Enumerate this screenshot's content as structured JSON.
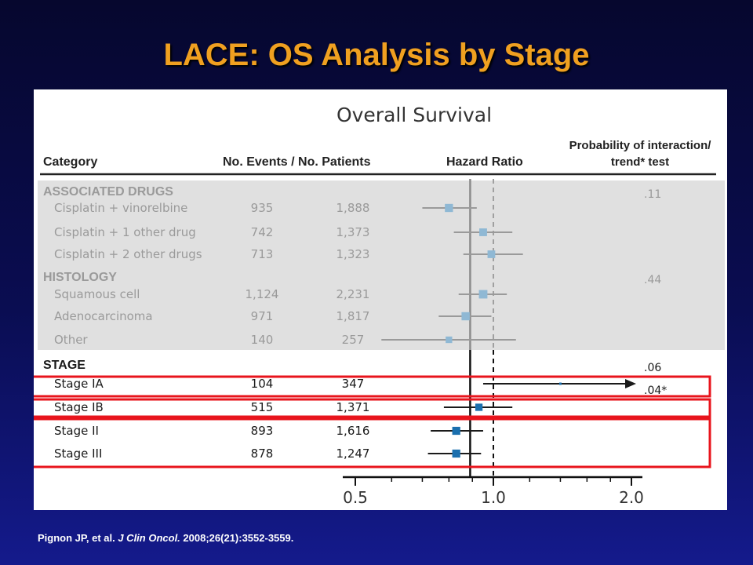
{
  "slide": {
    "title": "LACE: OS Analysis by Stage",
    "citation": {
      "authors": "Pignon JP, et al. ",
      "journal": "J Clin Oncol.",
      "details": " 2008;26(21):3552-3559."
    }
  },
  "chart_data": {
    "type": "forest",
    "title": "Overall Survival",
    "columns": {
      "category": "Category",
      "events_patients": "No. Events / No. Patients",
      "hazard_ratio": "Hazard Ratio",
      "interaction_line1": "Probability of interaction/",
      "interaction_line2": "trend* test"
    },
    "x_axis": {
      "ticks": [
        "0.5",
        "1.0",
        "2.0"
      ],
      "tick_values": [
        0.5,
        1.0,
        2.0
      ],
      "scale": "log"
    },
    "overall_hr": 0.89,
    "groups": [
      {
        "name": "ASSOCIATED DRUGS",
        "p_value": ".11",
        "greyed": true,
        "rows": [
          {
            "label": "Cisplatin + vinorelbine",
            "events": "935",
            "patients": "1,888",
            "hr": 0.8,
            "ci": [
              0.7,
              0.92
            ]
          },
          {
            "label": "Cisplatin + 1 other drug",
            "events": "742",
            "patients": "1,373",
            "hr": 0.95,
            "ci": [
              0.82,
              1.1
            ]
          },
          {
            "label": "Cisplatin + 2 other drugs",
            "events": "713",
            "patients": "1,323",
            "hr": 0.99,
            "ci": [
              0.86,
              1.16
            ]
          }
        ]
      },
      {
        "name": "HISTOLOGY",
        "p_value": ".44",
        "greyed": true,
        "rows": [
          {
            "label": "Squamous cell",
            "events": "1,124",
            "patients": "2,231",
            "hr": 0.95,
            "ci": [
              0.84,
              1.07
            ]
          },
          {
            "label": "Adenocarcinoma",
            "events": "971",
            "patients": "1,817",
            "hr": 0.87,
            "ci": [
              0.76,
              0.99
            ]
          },
          {
            "label": "Other",
            "events": "140",
            "patients": "257",
            "hr": 0.8,
            "ci": [
              0.57,
              1.12
            ]
          }
        ]
      },
      {
        "name": "STAGE",
        "p_value": ".06",
        "trend_p_value": ".04*",
        "greyed": false,
        "rows": [
          {
            "label": "Stage IA",
            "events": "104",
            "patients": "347",
            "hr": 1.4,
            "ci": [
              0.95,
              2.0
            ],
            "arrow": true
          },
          {
            "label": "Stage IB",
            "events": "515",
            "patients": "1,371",
            "hr": 0.93,
            "ci": [
              0.78,
              1.1
            ]
          },
          {
            "label": "Stage II",
            "events": "893",
            "patients": "1,616",
            "hr": 0.83,
            "ci": [
              0.73,
              0.95
            ]
          },
          {
            "label": "Stage III",
            "events": "878",
            "patients": "1,247",
            "hr": 0.83,
            "ci": [
              0.72,
              0.94
            ]
          }
        ]
      }
    ],
    "highlight_color": "#e8141c",
    "marker_color_active": "#1a6fae",
    "marker_color_grey": "#8fb8d4"
  }
}
